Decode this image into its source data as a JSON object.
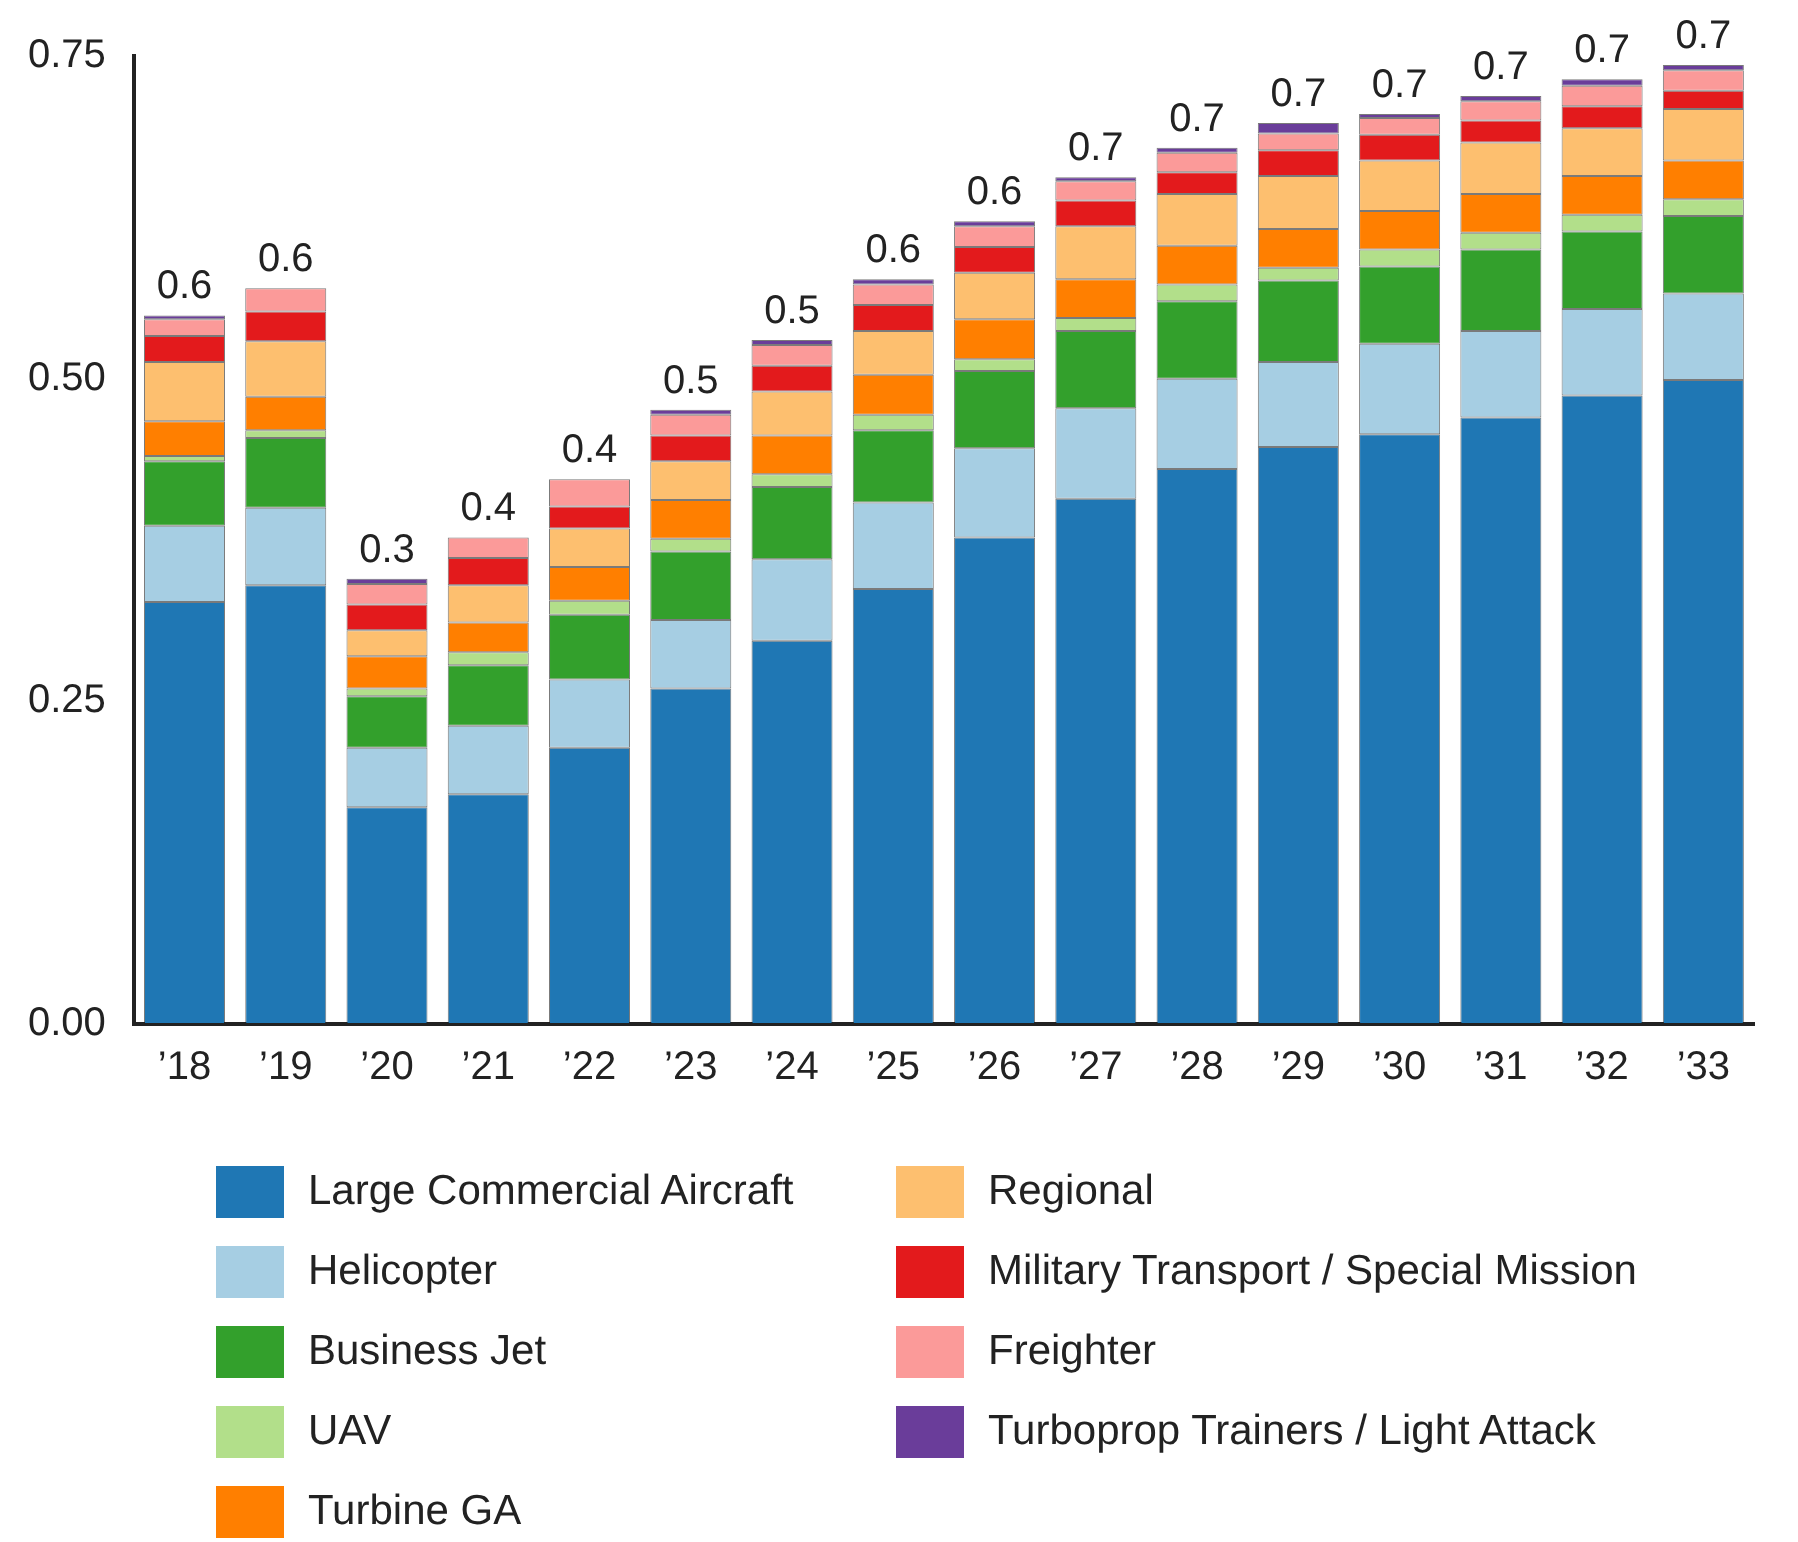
{
  "chart_data": {
    "type": "bar",
    "stacked": true,
    "legend": "bottom",
    "data_labels": false,
    "categories": [
      "’18",
      "’19",
      "’20",
      "’21",
      "’22",
      "’23",
      "’24",
      "’25",
      "’26",
      "’27",
      "’28",
      "’29",
      "’30",
      "’31",
      "’32",
      "’33"
    ],
    "ylim": [
      0,
      0.75
    ],
    "yticks": [
      {
        "value": 0,
        "label": "0.00"
      },
      {
        "value": 0.25,
        "label": "0.25"
      },
      {
        "value": 0.5,
        "label": "0.50"
      },
      {
        "value": 0.75,
        "label": "0.75"
      }
    ],
    "totals": [
      "0.6",
      "0.6",
      "0.3",
      "0.4",
      "0.4",
      "0.5",
      "0.5",
      "0.6",
      "0.6",
      "0.7",
      "0.7",
      "0.7",
      "0.7",
      "0.7",
      "0.7",
      "0.7"
    ],
    "series": [
      {
        "name": "Large Commercial Aircraft",
        "color": "#1f77b4",
        "values": [
          0.327,
          0.34,
          0.168,
          0.178,
          0.214,
          0.26,
          0.297,
          0.337,
          0.377,
          0.407,
          0.43,
          0.447,
          0.457,
          0.47,
          0.487,
          0.499
        ]
      },
      {
        "name": "Helicopter",
        "color": "#a6cee3",
        "values": [
          0.059,
          0.06,
          0.046,
          0.053,
          0.053,
          0.053,
          0.063,
          0.067,
          0.069,
          0.07,
          0.07,
          0.066,
          0.07,
          0.067,
          0.067,
          0.067
        ]
      },
      {
        "name": "Business Jet",
        "color": "#33a02c",
        "values": [
          0.05,
          0.054,
          0.04,
          0.047,
          0.05,
          0.053,
          0.056,
          0.056,
          0.06,
          0.06,
          0.06,
          0.063,
          0.06,
          0.063,
          0.06,
          0.06
        ]
      },
      {
        "name": "UAV",
        "color": "#b2df8a",
        "values": [
          0.004,
          0.006,
          0.006,
          0.01,
          0.011,
          0.01,
          0.01,
          0.012,
          0.009,
          0.01,
          0.013,
          0.01,
          0.013,
          0.013,
          0.013,
          0.013
        ]
      },
      {
        "name": "Turbine GA",
        "color": "#ff7f00",
        "values": [
          0.027,
          0.026,
          0.025,
          0.023,
          0.026,
          0.03,
          0.03,
          0.031,
          0.031,
          0.03,
          0.03,
          0.03,
          0.03,
          0.03,
          0.03,
          0.03
        ]
      },
      {
        "name": "Regional",
        "color": "#fdbf6f",
        "values": [
          0.046,
          0.043,
          0.02,
          0.029,
          0.03,
          0.03,
          0.034,
          0.034,
          0.036,
          0.041,
          0.04,
          0.041,
          0.039,
          0.04,
          0.037,
          0.04
        ]
      },
      {
        "name": "Military Transport / Special Mission",
        "color": "#e31a1c",
        "values": [
          0.02,
          0.023,
          0.02,
          0.021,
          0.017,
          0.02,
          0.02,
          0.02,
          0.02,
          0.02,
          0.017,
          0.02,
          0.02,
          0.017,
          0.017,
          0.014
        ]
      },
      {
        "name": "Freighter",
        "color": "#fb9a99",
        "values": [
          0.013,
          0.018,
          0.016,
          0.016,
          0.021,
          0.016,
          0.016,
          0.016,
          0.016,
          0.015,
          0.015,
          0.013,
          0.013,
          0.015,
          0.016,
          0.016
        ]
      },
      {
        "name": "Turboprop Trainers / Light Attack",
        "color": "#6a3d9a",
        "values": [
          0.003,
          0,
          0.004,
          0,
          0,
          0.004,
          0.004,
          0.004,
          0.004,
          0.003,
          0.004,
          0.008,
          0.003,
          0.004,
          0.005,
          0.004
        ]
      }
    ]
  }
}
